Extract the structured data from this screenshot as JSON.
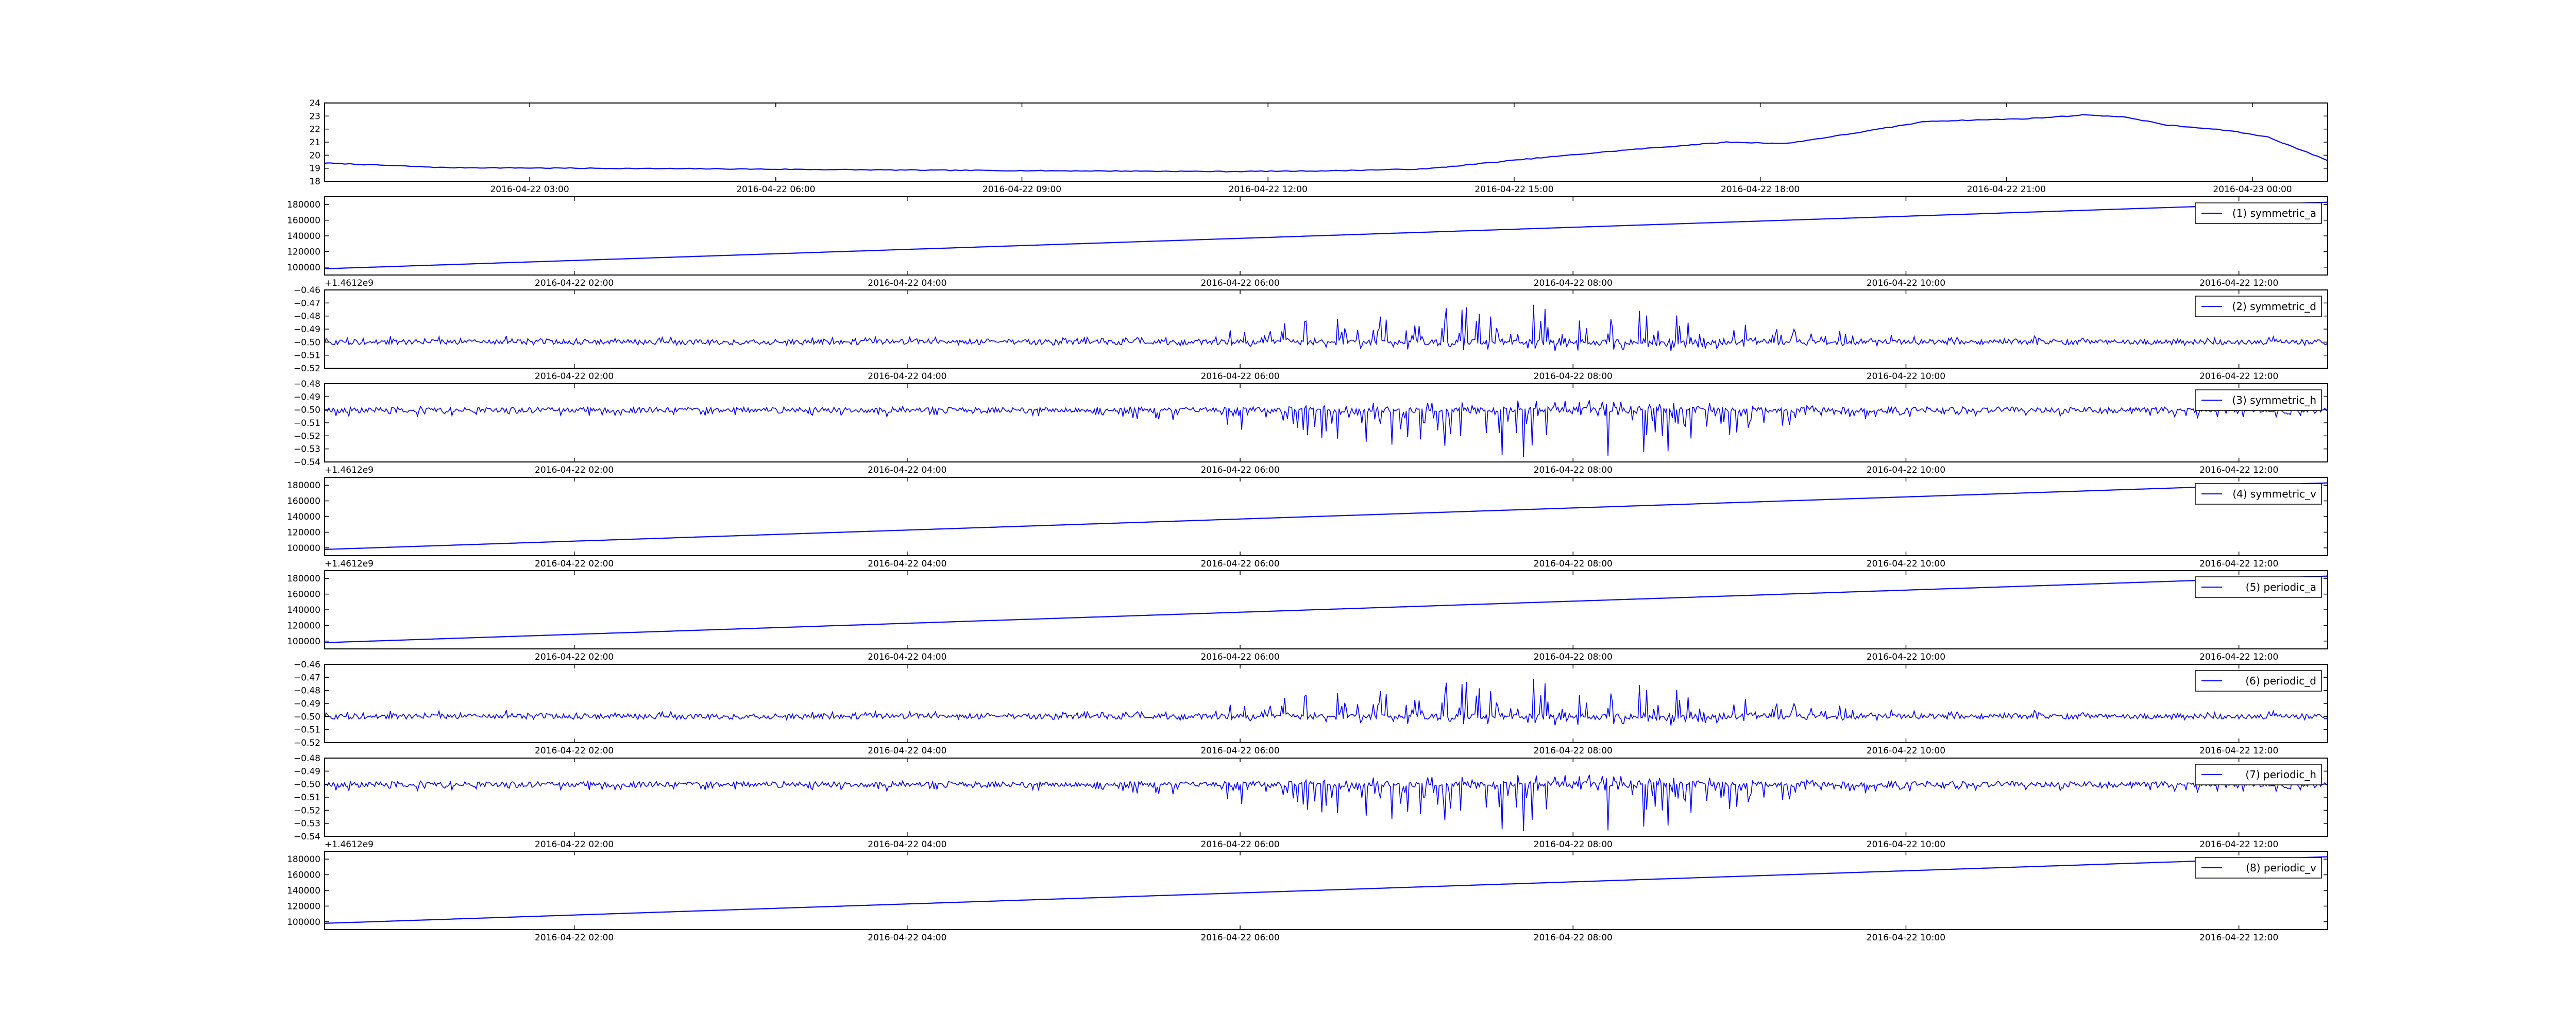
{
  "chart_data": [
    {
      "type": "line",
      "series": [
        {
          "name": "",
          "color": "#0000ff",
          "shape": "temperature",
          "baseline": 19.0,
          "amplitude": 3.9
        }
      ],
      "ylim": [
        18,
        24
      ],
      "yticks": [
        18,
        19,
        20,
        21,
        22,
        23,
        24
      ],
      "ytick_labels": [
        "18",
        "19",
        "20",
        "21",
        "22",
        "23",
        "24"
      ],
      "xlim": [
        "2016-04-22 00:30",
        "2016-04-23 00:55"
      ],
      "xticks": [
        "2016-04-22 03:00",
        "2016-04-22 06:00",
        "2016-04-22 09:00",
        "2016-04-22 12:00",
        "2016-04-22 15:00",
        "2016-04-22 18:00",
        "2016-04-22 21:00",
        "2016-04-23 00:00"
      ],
      "xtick_labels": [
        "2016-04-22 03:00",
        "2016-04-22 06:00",
        "2016-04-22 09:00",
        "2016-04-22 12:00",
        "2016-04-22 15:00",
        "2016-04-22 18:00",
        "2016-04-22 21:00",
        "2016-04-23 00:00"
      ],
      "offset_label": "",
      "legend": null,
      "grid": false
    },
    {
      "type": "line",
      "series": [
        {
          "name": "(1) symmetric_a",
          "color": "#0000ff",
          "shape": "linear",
          "start": 98000,
          "end": 183000
        }
      ],
      "ylim": [
        90000,
        190000
      ],
      "yticks": [
        100000,
        120000,
        140000,
        160000,
        180000
      ],
      "ytick_labels": [
        "100000",
        "120000",
        "140000",
        "160000",
        "180000"
      ],
      "xlim": [
        "2016-04-22 00:30",
        "2016-04-22 12:32"
      ],
      "xticks": [
        "2016-04-22 02:00",
        "2016-04-22 04:00",
        "2016-04-22 06:00",
        "2016-04-22 08:00",
        "2016-04-22 10:00",
        "2016-04-22 12:00"
      ],
      "xtick_labels": [
        "2016-04-22 02:00",
        "2016-04-22 04:00",
        "2016-04-22 06:00",
        "2016-04-22 08:00",
        "2016-04-22 10:00",
        "2016-04-22 12:00"
      ],
      "offset_label": "+1.4612e9",
      "legend": "top-right",
      "grid": false
    },
    {
      "type": "line",
      "series": [
        {
          "name": "(2) symmetric_d",
          "color": "#0000ff",
          "shape": "noise",
          "baseline": -0.5,
          "amplitude": 0.028,
          "direction": "up",
          "seed": 11
        }
      ],
      "ylim": [
        -0.52,
        -0.46
      ],
      "yticks": [
        -0.52,
        -0.51,
        -0.5,
        -0.49,
        -0.48,
        -0.47,
        -0.46
      ],
      "ytick_labels": [
        "−0.52",
        "−0.51",
        "−0.50",
        "−0.49",
        "−0.48",
        "−0.47",
        "−0.46"
      ],
      "xlim": [
        "2016-04-22 00:30",
        "2016-04-22 12:32"
      ],
      "xticks": [
        "2016-04-22 02:00",
        "2016-04-22 04:00",
        "2016-04-22 06:00",
        "2016-04-22 08:00",
        "2016-04-22 10:00",
        "2016-04-22 12:00"
      ],
      "xtick_labels": [
        "2016-04-22 02:00",
        "2016-04-22 04:00",
        "2016-04-22 06:00",
        "2016-04-22 08:00",
        "2016-04-22 10:00",
        "2016-04-22 12:00"
      ],
      "offset_label": "",
      "legend": "top-right",
      "grid": false
    },
    {
      "type": "line",
      "series": [
        {
          "name": "(3) symmetric_h",
          "color": "#0000ff",
          "shape": "noise",
          "baseline": -0.5,
          "amplitude": 0.035,
          "direction": "down",
          "seed": 23
        }
      ],
      "ylim": [
        -0.54,
        -0.48
      ],
      "yticks": [
        -0.54,
        -0.53,
        -0.52,
        -0.51,
        -0.5,
        -0.49,
        -0.48
      ],
      "ytick_labels": [
        "−0.54",
        "−0.53",
        "−0.52",
        "−0.51",
        "−0.50",
        "−0.49",
        "−0.48"
      ],
      "xlim": [
        "2016-04-22 00:30",
        "2016-04-22 12:32"
      ],
      "xticks": [
        "2016-04-22 02:00",
        "2016-04-22 04:00",
        "2016-04-22 06:00",
        "2016-04-22 08:00",
        "2016-04-22 10:00",
        "2016-04-22 12:00"
      ],
      "xtick_labels": [
        "2016-04-22 02:00",
        "2016-04-22 04:00",
        "2016-04-22 06:00",
        "2016-04-22 08:00",
        "2016-04-22 10:00",
        "2016-04-22 12:00"
      ],
      "offset_label": "+1.4612e9",
      "legend": "top-right",
      "grid": false
    },
    {
      "type": "line",
      "series": [
        {
          "name": "(4) symmetric_v",
          "color": "#0000ff",
          "shape": "linear",
          "start": 98000,
          "end": 183000
        }
      ],
      "ylim": [
        90000,
        190000
      ],
      "yticks": [
        100000,
        120000,
        140000,
        160000,
        180000
      ],
      "ytick_labels": [
        "100000",
        "120000",
        "140000",
        "160000",
        "180000"
      ],
      "xlim": [
        "2016-04-22 00:30",
        "2016-04-22 12:32"
      ],
      "xticks": [
        "2016-04-22 02:00",
        "2016-04-22 04:00",
        "2016-04-22 06:00",
        "2016-04-22 08:00",
        "2016-04-22 10:00",
        "2016-04-22 12:00"
      ],
      "xtick_labels": [
        "2016-04-22 02:00",
        "2016-04-22 04:00",
        "2016-04-22 06:00",
        "2016-04-22 08:00",
        "2016-04-22 10:00",
        "2016-04-22 12:00"
      ],
      "offset_label": "+1.4612e9",
      "legend": "top-right",
      "grid": false
    },
    {
      "type": "line",
      "series": [
        {
          "name": "(5) periodic_a",
          "color": "#0000ff",
          "shape": "linear",
          "start": 98000,
          "end": 183000
        }
      ],
      "ylim": [
        90000,
        190000
      ],
      "yticks": [
        100000,
        120000,
        140000,
        160000,
        180000
      ],
      "ytick_labels": [
        "100000",
        "120000",
        "140000",
        "160000",
        "180000"
      ],
      "xlim": [
        "2016-04-22 00:30",
        "2016-04-22 12:32"
      ],
      "xticks": [
        "2016-04-22 02:00",
        "2016-04-22 04:00",
        "2016-04-22 06:00",
        "2016-04-22 08:00",
        "2016-04-22 10:00",
        "2016-04-22 12:00"
      ],
      "xtick_labels": [
        "2016-04-22 02:00",
        "2016-04-22 04:00",
        "2016-04-22 06:00",
        "2016-04-22 08:00",
        "2016-04-22 10:00",
        "2016-04-22 12:00"
      ],
      "offset_label": "",
      "legend": "top-right",
      "grid": false
    },
    {
      "type": "line",
      "series": [
        {
          "name": "(6) periodic_d",
          "color": "#0000ff",
          "shape": "noise",
          "baseline": -0.5,
          "amplitude": 0.028,
          "direction": "up",
          "seed": 11
        }
      ],
      "ylim": [
        -0.52,
        -0.46
      ],
      "yticks": [
        -0.52,
        -0.51,
        -0.5,
        -0.49,
        -0.48,
        -0.47,
        -0.46
      ],
      "ytick_labels": [
        "−0.52",
        "−0.51",
        "−0.50",
        "−0.49",
        "−0.48",
        "−0.47",
        "−0.46"
      ],
      "xlim": [
        "2016-04-22 00:30",
        "2016-04-22 12:32"
      ],
      "xticks": [
        "2016-04-22 02:00",
        "2016-04-22 04:00",
        "2016-04-22 06:00",
        "2016-04-22 08:00",
        "2016-04-22 10:00",
        "2016-04-22 12:00"
      ],
      "xtick_labels": [
        "2016-04-22 02:00",
        "2016-04-22 04:00",
        "2016-04-22 06:00",
        "2016-04-22 08:00",
        "2016-04-22 10:00",
        "2016-04-22 12:00"
      ],
      "offset_label": "",
      "legend": "top-right",
      "grid": false
    },
    {
      "type": "line",
      "series": [
        {
          "name": "(7) periodic_h",
          "color": "#0000ff",
          "shape": "noise",
          "baseline": -0.5,
          "amplitude": 0.035,
          "direction": "down",
          "seed": 23
        }
      ],
      "ylim": [
        -0.54,
        -0.48
      ],
      "yticks": [
        -0.54,
        -0.53,
        -0.52,
        -0.51,
        -0.5,
        -0.49,
        -0.48
      ],
      "ytick_labels": [
        "−0.54",
        "−0.53",
        "−0.52",
        "−0.51",
        "−0.50",
        "−0.49",
        "−0.48"
      ],
      "xlim": [
        "2016-04-22 00:30",
        "2016-04-22 12:32"
      ],
      "xticks": [
        "2016-04-22 02:00",
        "2016-04-22 04:00",
        "2016-04-22 06:00",
        "2016-04-22 08:00",
        "2016-04-22 10:00",
        "2016-04-22 12:00"
      ],
      "xtick_labels": [
        "2016-04-22 02:00",
        "2016-04-22 04:00",
        "2016-04-22 06:00",
        "2016-04-22 08:00",
        "2016-04-22 10:00",
        "2016-04-22 12:00"
      ],
      "offset_label": "+1.4612e9",
      "legend": "top-right",
      "grid": false
    },
    {
      "type": "line",
      "series": [
        {
          "name": "(8) periodic_v",
          "color": "#0000ff",
          "shape": "linear",
          "start": 98000,
          "end": 183000
        }
      ],
      "ylim": [
        90000,
        190000
      ],
      "yticks": [
        100000,
        120000,
        140000,
        160000,
        180000
      ],
      "ytick_labels": [
        "100000",
        "120000",
        "140000",
        "160000",
        "180000"
      ],
      "xlim": [
        "2016-04-22 00:30",
        "2016-04-22 12:32"
      ],
      "xticks": [
        "2016-04-22 02:00",
        "2016-04-22 04:00",
        "2016-04-22 06:00",
        "2016-04-22 08:00",
        "2016-04-22 10:00",
        "2016-04-22 12:00"
      ],
      "xtick_labels": [
        "2016-04-22 02:00",
        "2016-04-22 04:00",
        "2016-04-22 06:00",
        "2016-04-22 08:00",
        "2016-04-22 10:00",
        "2016-04-22 12:00"
      ],
      "offset_label": "",
      "legend": "top-right",
      "grid": false
    }
  ]
}
